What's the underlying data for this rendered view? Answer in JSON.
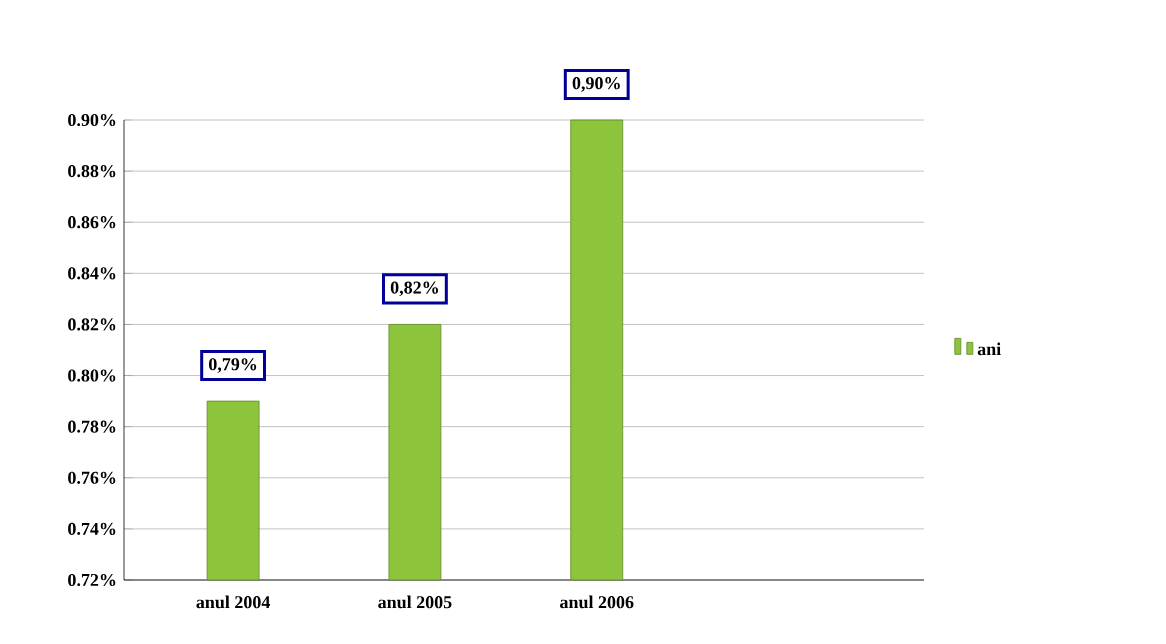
{
  "chart_data": {
    "type": "bar",
    "categories": [
      "anul 2004",
      "anul 2005",
      "anul 2006"
    ],
    "series": [
      {
        "name": "ani",
        "color": "#8cc43c",
        "values": [
          0.79,
          0.82,
          0.9
        ],
        "value_labels": [
          "0,79%",
          "0,82%",
          "0,90%"
        ]
      }
    ],
    "ylim": [
      0.72,
      0.9
    ],
    "yticks": [
      {
        "value": 0.72,
        "label": "0.72%"
      },
      {
        "value": 0.74,
        "label": "0.74%"
      },
      {
        "value": 0.76,
        "label": "0.76%"
      },
      {
        "value": 0.78,
        "label": "0.78%"
      },
      {
        "value": 0.8,
        "label": "0.80%"
      },
      {
        "value": 0.82,
        "label": "0.82%"
      },
      {
        "value": 0.84,
        "label": "0.84%"
      },
      {
        "value": 0.86,
        "label": "0.86%"
      },
      {
        "value": 0.88,
        "label": "0.88%"
      },
      {
        "value": 0.9,
        "label": "0.90%"
      }
    ],
    "grid": "y",
    "legend": "right"
  }
}
